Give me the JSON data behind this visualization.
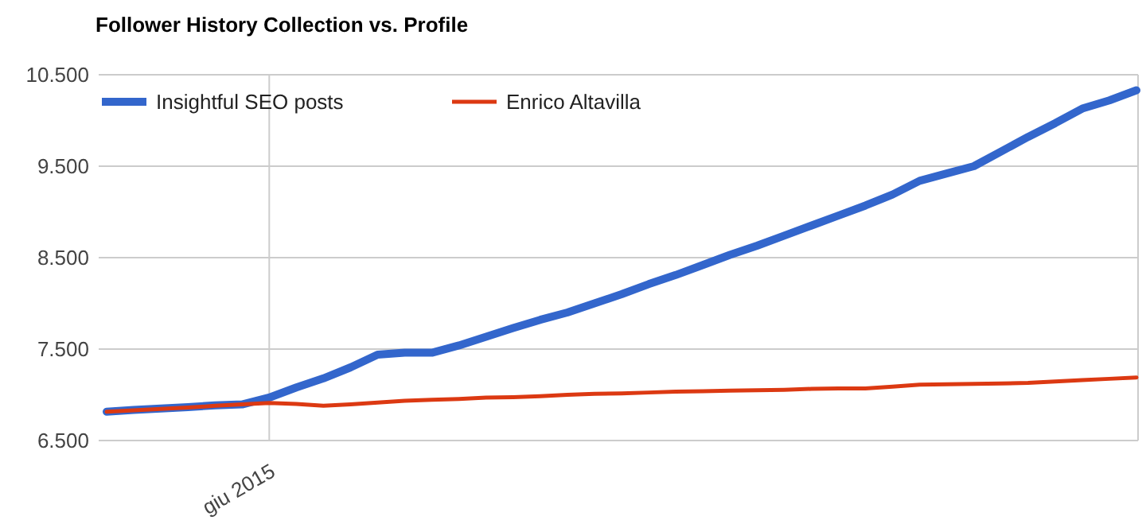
{
  "chart_data": {
    "type": "line",
    "title": "Follower History Collection vs. Profile",
    "categories": [
      null,
      null,
      null,
      null,
      null,
      null,
      "giu 2015",
      null,
      null,
      null,
      null,
      null,
      null,
      null,
      null,
      null,
      null,
      null,
      null,
      null,
      null,
      null,
      null,
      null,
      null,
      null,
      null,
      null,
      null,
      null,
      null,
      null,
      null,
      null,
      null,
      null,
      null,
      null,
      null
    ],
    "ylim": [
      6500,
      10500
    ],
    "yticks": [
      {
        "value": 6500,
        "label": "6.500"
      },
      {
        "value": 7500,
        "label": "7.500"
      },
      {
        "value": 8500,
        "label": "8.500"
      },
      {
        "value": 9500,
        "label": "9.500"
      },
      {
        "value": 10500,
        "label": "10.500"
      }
    ],
    "grid": true,
    "legend": "top left",
    "marker": "none",
    "line_style": "solid",
    "series": [
      {
        "name": "Insightful SEO posts",
        "color": "#3366cc",
        "values": [
          6815,
          6835,
          6850,
          6865,
          6885,
          6895,
          6970,
          7080,
          7180,
          7300,
          7440,
          7460,
          7460,
          7540,
          7635,
          7730,
          7820,
          7900,
          8000,
          8100,
          8210,
          8310,
          8420,
          8530,
          8630,
          8740,
          8850,
          8960,
          9070,
          9190,
          9340,
          9420,
          9500,
          9660,
          9820,
          9970,
          10130,
          10220,
          10330
        ]
      },
      {
        "name": "Enrico Altavilla",
        "color": "#dc3912",
        "values": [
          6815,
          6830,
          6845,
          6860,
          6880,
          6895,
          6910,
          6900,
          6880,
          6895,
          6915,
          6935,
          6945,
          6955,
          6970,
          6975,
          6985,
          7000,
          7010,
          7015,
          7025,
          7035,
          7040,
          7045,
          7050,
          7055,
          7065,
          7070,
          7070,
          7090,
          7110,
          7115,
          7120,
          7125,
          7130,
          7145,
          7160,
          7175,
          7190
        ]
      }
    ]
  }
}
